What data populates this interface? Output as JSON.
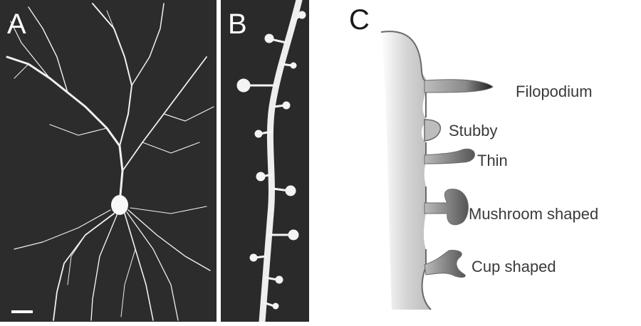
{
  "panels": {
    "a": {
      "letter": "A"
    },
    "b": {
      "letter": "B"
    },
    "c": {
      "letter": "C"
    }
  },
  "spine_labels": {
    "filopodium": "Filopodium",
    "stubby": "Stubby",
    "thin": "Thin",
    "mushroom": "Mushroom shaped",
    "cup": "Cup shaped"
  },
  "colors": {
    "dark_background": "#2c2c2c",
    "neuron": "#f2f2f2",
    "dendrite_fill_light": "#eeeeee",
    "dendrite_fill_dark": "#bdbdbd",
    "outline": "#6a6a6a",
    "spine_dark": "#555555"
  }
}
